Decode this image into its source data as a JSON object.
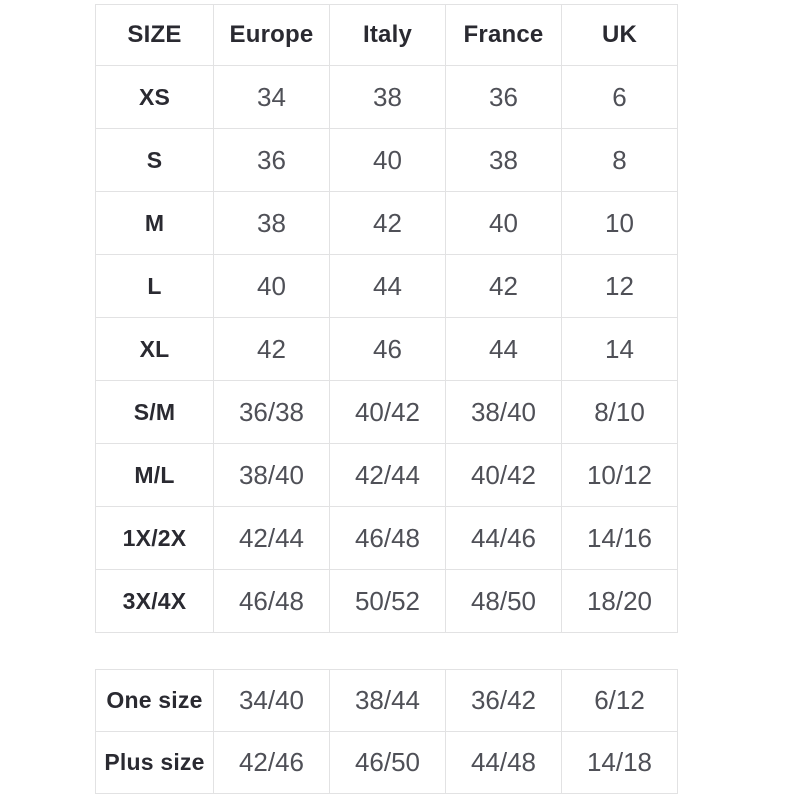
{
  "colors": {
    "page_background": "#ffffff",
    "header_text": "#2a2a31",
    "cell_text": "#4f5057",
    "border": "#e2e2e3"
  },
  "size_table": {
    "headers": [
      "SIZE",
      "Europe",
      "Italy",
      "France",
      "UK"
    ],
    "rows": [
      {
        "size": "XS",
        "values": [
          "34",
          "38",
          "36",
          "6"
        ]
      },
      {
        "size": "S",
        "values": [
          "36",
          "40",
          "38",
          "8"
        ]
      },
      {
        "size": "M",
        "values": [
          "38",
          "42",
          "40",
          "10"
        ]
      },
      {
        "size": "L",
        "values": [
          "40",
          "44",
          "42",
          "12"
        ]
      },
      {
        "size": "XL",
        "values": [
          "42",
          "46",
          "44",
          "14"
        ]
      },
      {
        "size": "S/M",
        "values": [
          "36/38",
          "40/42",
          "38/40",
          "8/10"
        ]
      },
      {
        "size": "M/L",
        "values": [
          "38/40",
          "42/44",
          "40/42",
          "10/12"
        ]
      },
      {
        "size": "1X/2X",
        "values": [
          "42/44",
          "46/48",
          "44/46",
          "14/16"
        ]
      },
      {
        "size": "3X/4X",
        "values": [
          "46/48",
          "50/52",
          "48/50",
          "18/20"
        ]
      }
    ]
  },
  "special_size_table": {
    "rows": [
      {
        "size": "One size",
        "values": [
          "34/40",
          "38/44",
          "36/42",
          "6/12"
        ]
      },
      {
        "size": "Plus size",
        "values": [
          "42/46",
          "46/50",
          "44/48",
          "14/18"
        ]
      }
    ]
  }
}
